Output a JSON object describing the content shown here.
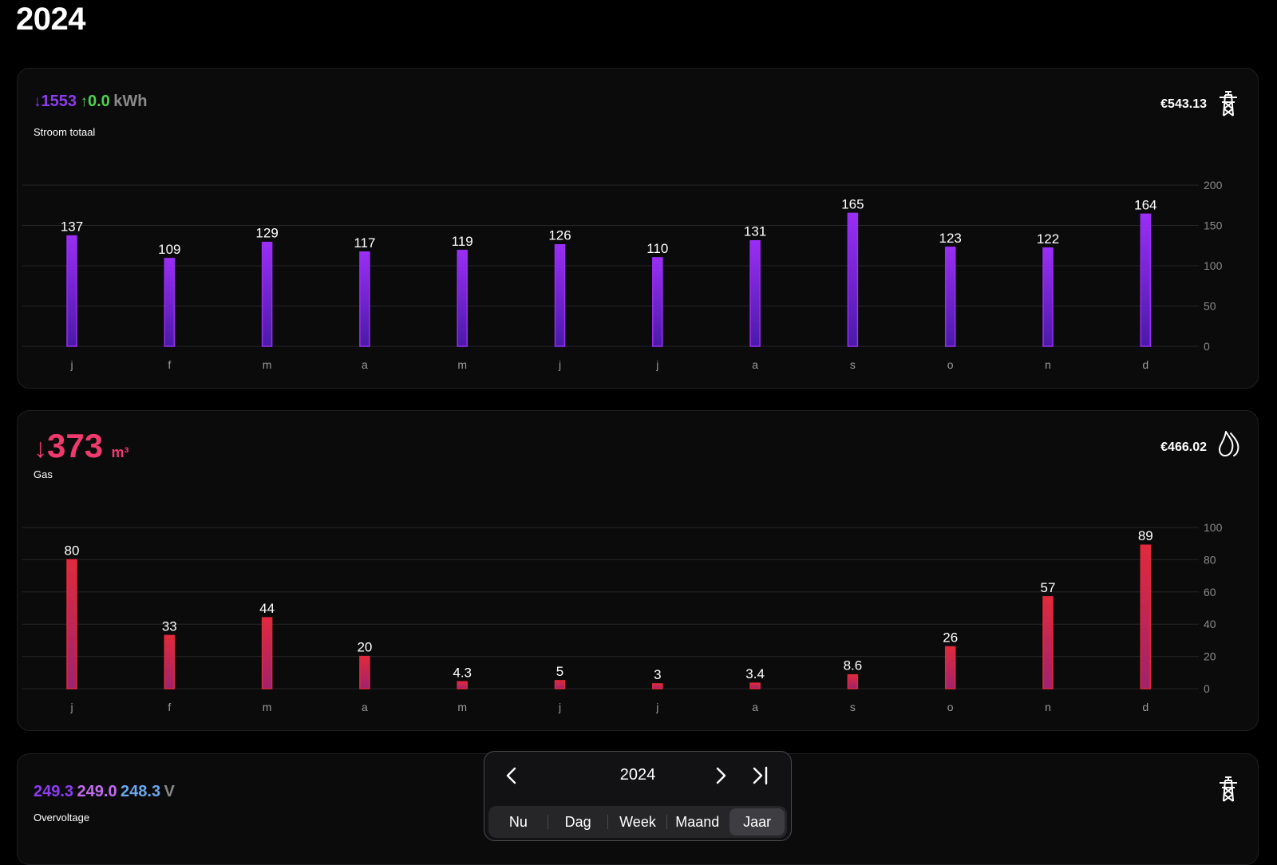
{
  "page": {
    "title": "2024"
  },
  "power": {
    "down_value": "1553",
    "up_value": "0.0",
    "unit": "kWh",
    "label": "Stroom totaal",
    "cost": "€543.13",
    "icon": "power-pylon-icon",
    "colors": {
      "down": "#8e3cf2",
      "up": "#4fd34f"
    }
  },
  "gas": {
    "value": "373",
    "unit": "m³",
    "label": "Gas",
    "cost": "€466.02",
    "icon": "gas-flame-icon",
    "colors": {
      "value": "#f03a6e"
    }
  },
  "voltage": {
    "values": [
      "249.3",
      "249.0",
      "248.3"
    ],
    "unit": "V",
    "label": "Overvoltage",
    "icon": "power-pylon-icon",
    "colors": [
      "#8e3cf2",
      "#c26cf0",
      "#6aa8ee"
    ]
  },
  "chart_data": [
    {
      "type": "bar",
      "categories": [
        "j",
        "f",
        "m",
        "a",
        "m",
        "j",
        "j",
        "a",
        "s",
        "o",
        "n",
        "d"
      ],
      "values": [
        137,
        109,
        129,
        117,
        119,
        126,
        110,
        131,
        165,
        123,
        122,
        164
      ],
      "value_labels": [
        "137",
        "109",
        "129",
        "117",
        "119",
        "126",
        "110",
        "131",
        "165",
        "123",
        "122",
        "164"
      ],
      "yticks": [
        "0",
        "50",
        "100",
        "150",
        "200"
      ],
      "ylim": [
        0,
        200
      ],
      "grid": true,
      "colors": {
        "top": "#9a2ef5",
        "bottom": "#4a1aa8"
      }
    },
    {
      "type": "bar",
      "categories": [
        "j",
        "f",
        "m",
        "a",
        "m",
        "j",
        "j",
        "a",
        "s",
        "o",
        "n",
        "d"
      ],
      "values": [
        80,
        33,
        44,
        20,
        4.3,
        5,
        3,
        3.4,
        8.6,
        26,
        57,
        89
      ],
      "value_labels": [
        "80",
        "33",
        "44",
        "20",
        "4.3",
        "5",
        "3",
        "3.4",
        "8.6",
        "26",
        "57",
        "89"
      ],
      "yticks": [
        "0",
        "20",
        "40",
        "60",
        "80",
        "100"
      ],
      "ylim": [
        0,
        100
      ],
      "grid": true,
      "colors": {
        "top": "#e02a3c",
        "bottom": "#a0226e"
      }
    }
  ],
  "nav": {
    "year": "2024",
    "tabs": [
      "Nu",
      "Dag",
      "Week",
      "Maand",
      "Jaar"
    ],
    "active_tab": "Jaar"
  }
}
